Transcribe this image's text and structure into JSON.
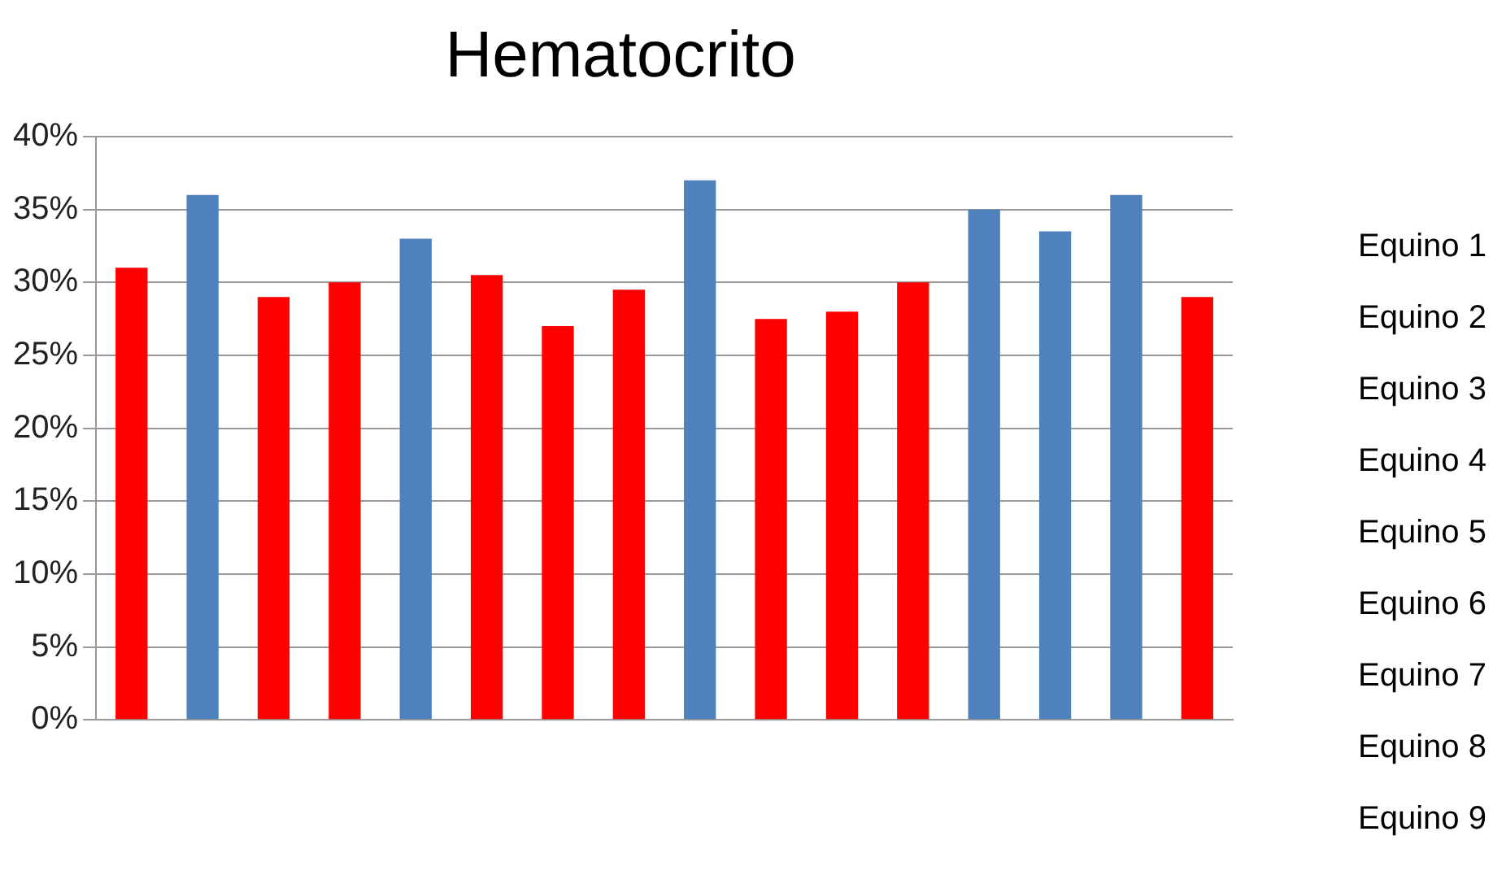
{
  "chart_data": {
    "type": "bar",
    "title": "Hematocrito",
    "categories": [
      null,
      null,
      null,
      null,
      null,
      null,
      null,
      null,
      null,
      null,
      null,
      null,
      null,
      null,
      null,
      null
    ],
    "values": [
      31,
      36,
      29,
      30,
      33,
      30.5,
      27,
      29.5,
      37,
      27.5,
      28,
      30,
      35,
      33.5,
      36,
      29
    ],
    "colors": [
      "#ff0000",
      "#4f81bd",
      "#ff0000",
      "#ff0000",
      "#4f81bd",
      "#ff0000",
      "#ff0000",
      "#ff0000",
      "#4f81bd",
      "#ff0000",
      "#ff0000",
      "#ff0000",
      "#4f81bd",
      "#4f81bd",
      "#4f81bd",
      "#ff0000"
    ],
    "ylim": [
      0,
      40
    ],
    "yticks": [
      {
        "value": 0,
        "label": "0%"
      },
      {
        "value": 5,
        "label": "5%"
      },
      {
        "value": 10,
        "label": "10%"
      },
      {
        "value": 15,
        "label": "15%"
      },
      {
        "value": 20,
        "label": "20%"
      },
      {
        "value": 25,
        "label": "25%"
      },
      {
        "value": 30,
        "label": "30%"
      },
      {
        "value": 35,
        "label": "35%"
      },
      {
        "value": 40,
        "label": "40%"
      }
    ],
    "grid": "y",
    "annotations": [
      "Equino 1",
      "Equino 2",
      "Equino 3",
      "Equino 4",
      "Equino 5",
      "Equino 6",
      "Equino 7",
      "Equino 8",
      "Equino 9"
    ]
  }
}
